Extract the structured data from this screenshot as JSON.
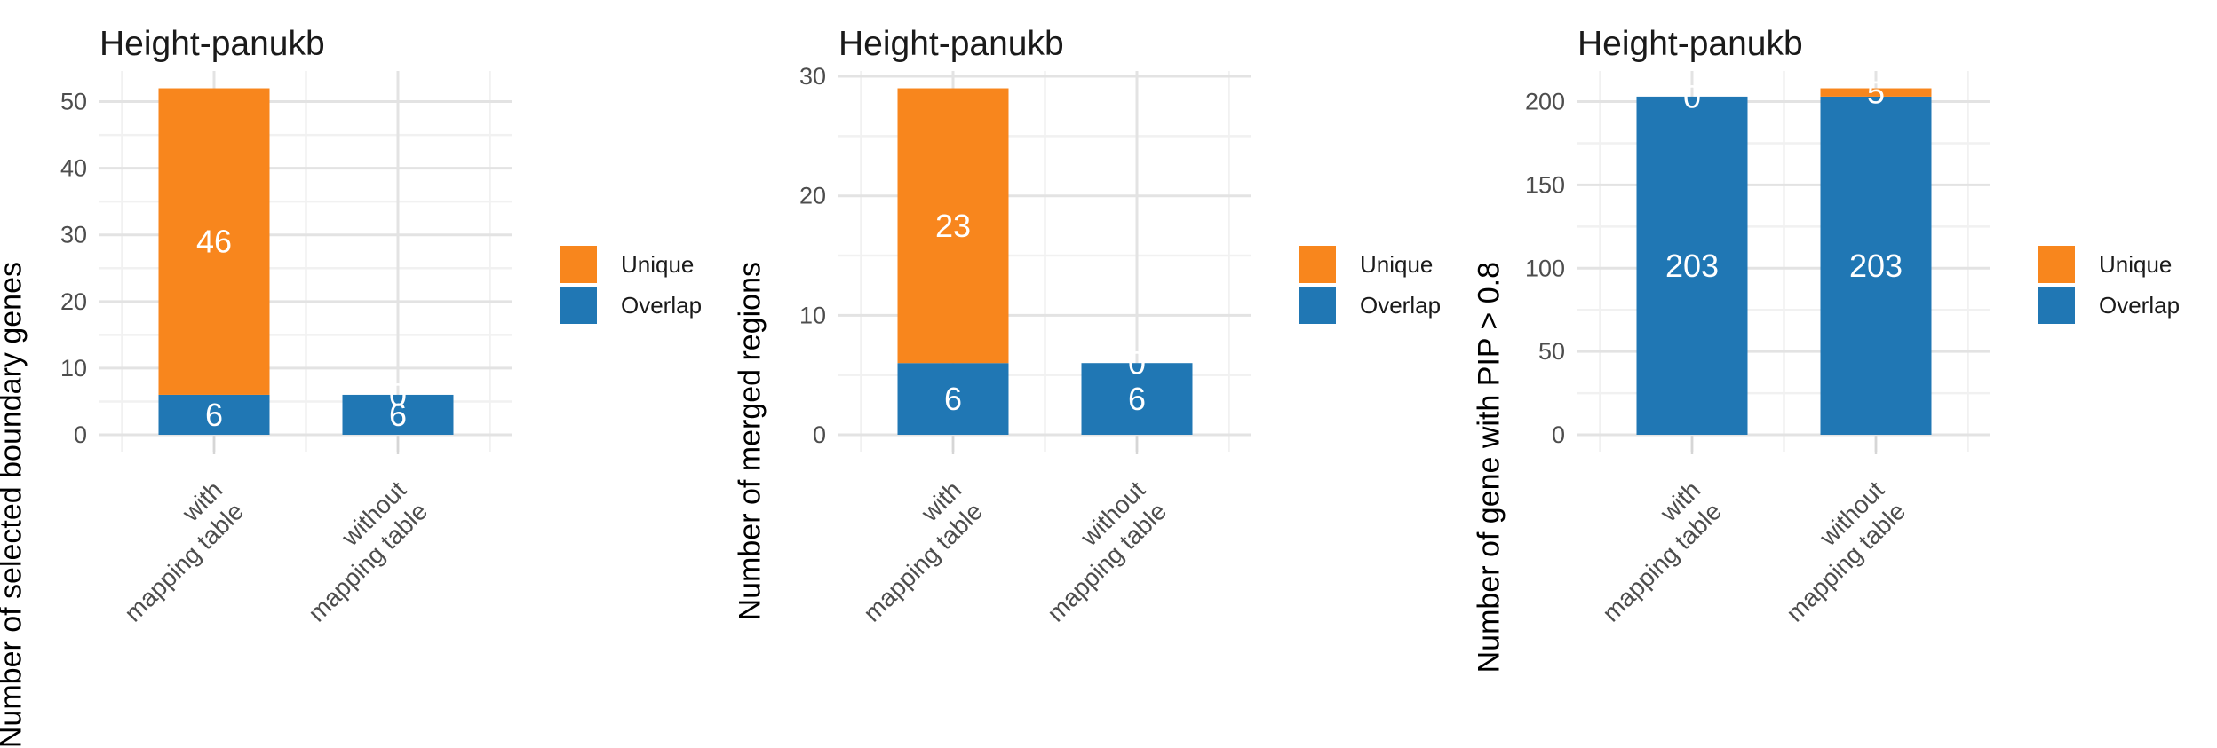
{
  "colors": {
    "unique": "#F8861D",
    "overlap": "#2077B4",
    "grid_major": "#E3E3E3",
    "grid_minor": "#F1F1F1",
    "tick_text": "#4D4D4D",
    "tick_mark": "#D6D6D6",
    "bar_label": "#FFFFFF",
    "title_text": "#1A1A1A"
  },
  "legend": {
    "items": [
      {
        "label": "Unique",
        "color_key": "unique"
      },
      {
        "label": "Overlap",
        "color_key": "overlap"
      }
    ]
  },
  "chart_data": [
    {
      "type": "bar",
      "stacked": true,
      "title": "Height-panukb",
      "xlabel": "",
      "ylabel": "Number of selected boundary genes",
      "categories": [
        "with mapping table",
        "without mapping table"
      ],
      "category_lines": [
        [
          "with",
          "mapping table"
        ],
        [
          "without",
          "mapping table"
        ]
      ],
      "series": [
        {
          "name": "Overlap",
          "color_key": "overlap",
          "values": [
            6,
            6
          ]
        },
        {
          "name": "Unique",
          "color_key": "unique",
          "values": [
            46,
            0
          ]
        }
      ],
      "totals": [
        52,
        6
      ],
      "yticks": [
        0,
        10,
        20,
        30,
        40,
        50
      ],
      "ytick_step": 10,
      "ylim": [
        0,
        54.6
      ],
      "grid": true,
      "legend_position": "right"
    },
    {
      "type": "bar",
      "stacked": true,
      "title": "Height-panukb",
      "xlabel": "",
      "ylabel": "Number of merged regions",
      "categories": [
        "with mapping table",
        "without mapping table"
      ],
      "category_lines": [
        [
          "with",
          "mapping table"
        ],
        [
          "without",
          "mapping table"
        ]
      ],
      "series": [
        {
          "name": "Overlap",
          "color_key": "overlap",
          "values": [
            6,
            6
          ]
        },
        {
          "name": "Unique",
          "color_key": "unique",
          "values": [
            23,
            0
          ]
        }
      ],
      "totals": [
        29,
        6
      ],
      "yticks": [
        0,
        10,
        20,
        30
      ],
      "ytick_step": 10,
      "ylim": [
        0,
        30.45
      ],
      "grid": true,
      "legend_position": "right"
    },
    {
      "type": "bar",
      "stacked": true,
      "title": "Height-panukb",
      "xlabel": "",
      "ylabel": "Number of gene with PIP > 0.8",
      "categories": [
        "with mapping table",
        "without mapping table"
      ],
      "category_lines": [
        [
          "with",
          "mapping table"
        ],
        [
          "without",
          "mapping table"
        ]
      ],
      "series": [
        {
          "name": "Overlap",
          "color_key": "overlap",
          "values": [
            203,
            203
          ]
        },
        {
          "name": "Unique",
          "color_key": "unique",
          "values": [
            0,
            5
          ]
        }
      ],
      "totals": [
        203,
        208
      ],
      "yticks": [
        0,
        50,
        100,
        150,
        200
      ],
      "ytick_step": 50,
      "ylim": [
        0,
        218.4
      ],
      "grid": true,
      "legend_position": "right"
    }
  ]
}
